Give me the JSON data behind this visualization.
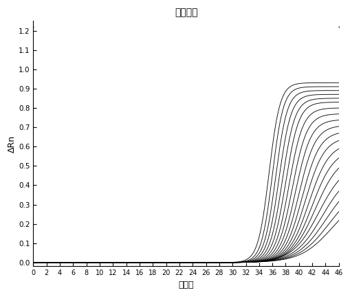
{
  "title": "扩增曲线",
  "xlabel": "循环数",
  "ylabel": "ΔRn",
  "xlim": [
    0,
    46
  ],
  "ylim": [
    -0.02,
    1.25
  ],
  "x_ticks": [
    0,
    2,
    4,
    6,
    8,
    10,
    12,
    14,
    16,
    18,
    20,
    22,
    24,
    26,
    28,
    30,
    32,
    34,
    36,
    38,
    40,
    42,
    44,
    46
  ],
  "y_ticks": [
    0.0,
    0.1,
    0.2,
    0.3,
    0.4,
    0.5,
    0.6,
    0.7,
    0.8,
    0.9,
    1.0,
    1.1,
    1.2
  ],
  "dotted_line_y": 1.22,
  "num_curves": 20,
  "curve_color": "#000000",
  "curve_linewidth": 0.65,
  "background_color": "#ffffff",
  "midpoints": [
    35.5,
    36.0,
    36.5,
    37.0,
    37.5,
    38.0,
    38.5,
    39.0,
    39.5,
    40.0,
    40.5,
    41.0,
    41.5,
    42.0,
    42.5,
    43.0,
    43.5,
    44.0,
    44.5,
    45.0
  ],
  "max_values": [
    0.93,
    0.91,
    0.89,
    0.87,
    0.85,
    0.83,
    0.8,
    0.77,
    0.74,
    0.71,
    0.68,
    0.65,
    0.62,
    0.59,
    0.56,
    0.52,
    0.48,
    0.44,
    0.4,
    0.36
  ],
  "slopes": [
    1.2,
    1.2,
    1.15,
    1.1,
    1.05,
    1.0,
    0.95,
    0.9,
    0.85,
    0.8,
    0.75,
    0.7,
    0.65,
    0.6,
    0.55,
    0.5,
    0.48,
    0.46,
    0.44,
    0.42
  ]
}
